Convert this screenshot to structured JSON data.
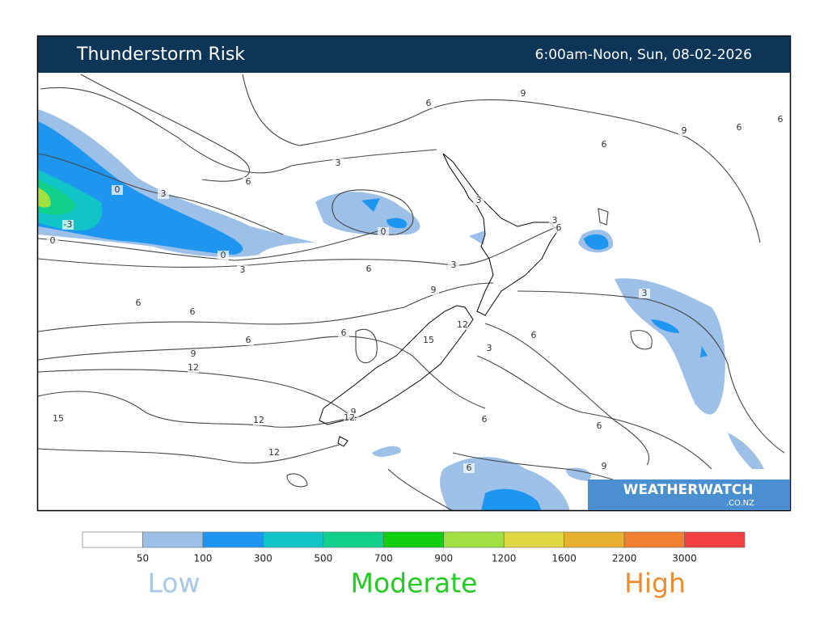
{
  "header": {
    "title": "Thunderstorm Risk",
    "period": "6:00am-Noon, Sun, 08-02-2026"
  },
  "map": {
    "contour_labels": [
      0,
      3,
      -3,
      0,
      0,
      3,
      6,
      3,
      0,
      6,
      3,
      6,
      9,
      6,
      9,
      6,
      6,
      3,
      3,
      6,
      6,
      6,
      9,
      3,
      6,
      6,
      15,
      12,
      6,
      3,
      9,
      12,
      15,
      12,
      9,
      12,
      6,
      6,
      12,
      6,
      9
    ]
  },
  "watermark": {
    "brand": "WEATHERWATCH",
    "domain": ".CO.NZ"
  },
  "legend": {
    "colors": [
      "#ffffff",
      "#9dc0e8",
      "#1e96f0",
      "#10c4c8",
      "#10d08c",
      "#10d010",
      "#a0e040",
      "#e0d840",
      "#e8b030",
      "#f08030",
      "#f04040"
    ],
    "ticks": [
      50,
      100,
      300,
      500,
      700,
      900,
      1200,
      1600,
      2200,
      3000
    ],
    "levels": [
      {
        "label": "Low",
        "color": "#a8c8e8"
      },
      {
        "label": "Moderate",
        "color": "#22cc22"
      },
      {
        "label": "High",
        "color": "#f08c30"
      }
    ]
  }
}
